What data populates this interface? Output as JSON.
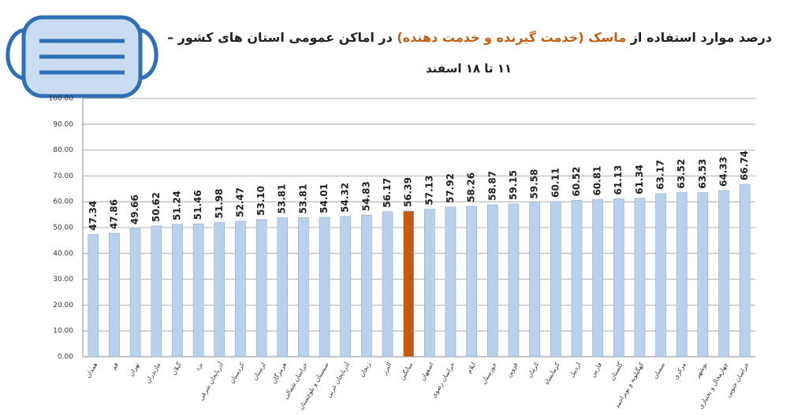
{
  "chart_data": {
    "type": "bar",
    "title": [
      "درصد موارد استفاده از",
      "ماسک (خدمت گیرنده و خدمت دهنده)",
      "در اماکن عمومی استان های کشور –"
    ],
    "title_colors": [
      "#1f1f1f",
      "#c55a11",
      "#1f1f1f"
    ],
    "subtitle": "۱۱ تا ۱۸ اسفند",
    "categories": [
      "همدان",
      "قم",
      "تهران",
      "مازندران",
      "گیلان",
      "یزد",
      "آذربایجان شرقی",
      "کردستان",
      "لرستان",
      "هرمزگان",
      "خراسان شمالی",
      "سیستان و بلوچستان",
      "آذربایجان غربی",
      "زنجان",
      "البرز",
      "میانگین",
      "اصفهان",
      "خراسان رضوی",
      "ایلام",
      "خوزستان",
      "قزوین",
      "کرمان",
      "کرمانشاه",
      "اردبیل",
      "فارس",
      "گلستان",
      "کهگیلویه و بویراحمد",
      "سمنان",
      "مرکزی",
      "بوشهر",
      "چهارمحال و بختیاری",
      "خراسان جنوبی"
    ],
    "values": [
      47.34,
      47.86,
      49.66,
      50.62,
      51.24,
      51.46,
      51.98,
      52.47,
      53.1,
      53.81,
      53.81,
      54.01,
      54.32,
      54.83,
      56.17,
      56.39,
      57.13,
      57.92,
      58.26,
      58.87,
      59.15,
      59.58,
      60.11,
      60.52,
      60.81,
      61.13,
      61.34,
      63.17,
      63.52,
      63.53,
      64.33,
      66.74
    ],
    "value_labels": [
      "47.34",
      "47.86",
      "49.66",
      "50.62",
      "51.24",
      "51.46",
      "51.98",
      "52.47",
      "53.10",
      "53.81",
      "53.81",
      "54.01",
      "54.32",
      "54.83",
      "56.17",
      "56.39",
      "57.13",
      "57.92",
      "58.26",
      "58.87",
      "59.15",
      "59.58",
      "60.11",
      "60.52",
      "60.81",
      "61.13",
      "61.34",
      "63.17",
      "63.52",
      "63.53",
      "64.33",
      "66.74"
    ],
    "colors": [
      "#b9d1ec",
      "#b9d1ec",
      "#b9d1ec",
      "#b9d1ec",
      "#b9d1ec",
      "#b9d1ec",
      "#b9d1ec",
      "#b9d1ec",
      "#b9d1ec",
      "#b9d1ec",
      "#b9d1ec",
      "#b9d1ec",
      "#b9d1ec",
      "#b9d1ec",
      "#b9d1ec",
      "#c55a11",
      "#b9d1ec",
      "#b9d1ec",
      "#b9d1ec",
      "#b9d1ec",
      "#b9d1ec",
      "#b9d1ec",
      "#b9d1ec",
      "#b9d1ec",
      "#b9d1ec",
      "#b9d1ec",
      "#b9d1ec",
      "#b9d1ec",
      "#b9d1ec",
      "#b9d1ec",
      "#b9d1ec",
      "#b9d1ec"
    ],
    "ylim": [
      0,
      100
    ],
    "yticks": [
      {
        "value": 0,
        "label": "0.00"
      },
      {
        "value": 10,
        "label": "10.00"
      },
      {
        "value": 20,
        "label": "20.00"
      },
      {
        "value": 30,
        "label": "30.00"
      },
      {
        "value": 40,
        "label": "40.00"
      },
      {
        "value": 50,
        "label": "50.00"
      },
      {
        "value": 60,
        "label": "60.00"
      },
      {
        "value": 70,
        "label": "70.00"
      },
      {
        "value": 80,
        "label": "80.00"
      },
      {
        "value": 90,
        "label": "90.00"
      },
      {
        "value": 100,
        "label": "100.00"
      }
    ],
    "grid": true
  }
}
